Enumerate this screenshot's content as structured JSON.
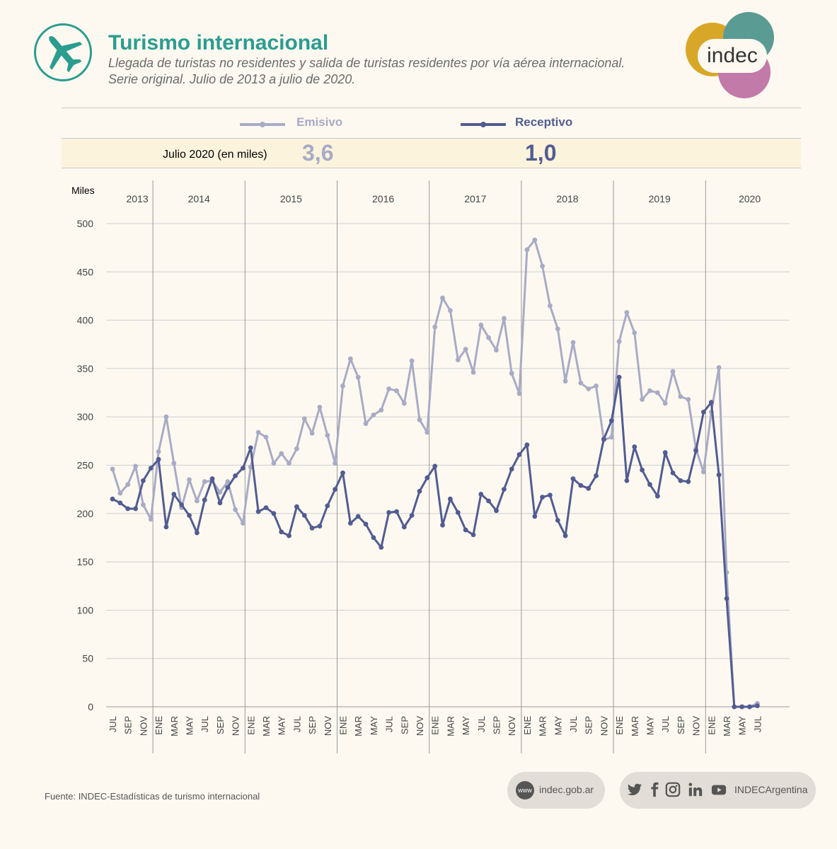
{
  "header": {
    "title": "Turismo internacional",
    "subtitle_line1": "Llegada de turistas no residentes y salida de turistas residentes por vía aérea internacional.",
    "subtitle_line2": "Serie original. Julio de 2013 a julio de 2020.",
    "logo_text": "indec"
  },
  "legend": {
    "emisivo_label": "Emisivo",
    "receptivo_label": "Receptivo"
  },
  "summary": {
    "label": "Julio 2020 (en miles)",
    "emisivo_value": "3,6",
    "receptivo_value": "1,0"
  },
  "footer": {
    "source": "Fuente: INDEC-Estadísticas de turismo internacional",
    "www_icon_text": "www",
    "website": "indec.gob.ar",
    "social_handle": "INDECArgentina",
    "social_icons": [
      "twitter-icon",
      "facebook-icon",
      "instagram-icon",
      "linkedin-icon",
      "youtube-icon"
    ]
  },
  "colors": {
    "emisivo": "#a8abc5",
    "receptivo": "#525c91",
    "title": "#2a9d8f",
    "logo_gold": "#d9a728",
    "logo_teal": "#5a9b93",
    "logo_pink": "#c27aa8"
  },
  "chart_data": {
    "type": "line",
    "ylabel": "Miles",
    "ylim": [
      0,
      500
    ],
    "yticks": [
      0,
      50,
      100,
      150,
      200,
      250,
      300,
      350,
      400,
      450,
      500
    ],
    "grid": true,
    "x_start": "2013-07",
    "x_end": "2020-07",
    "years": [
      "2013",
      "2014",
      "2015",
      "2016",
      "2017",
      "2018",
      "2019",
      "2020"
    ],
    "month_tick_labels": [
      "ENE",
      "MAR",
      "MAY",
      "JUL",
      "SEP",
      "NOV"
    ],
    "series": [
      {
        "name": "Emisivo",
        "values": [
          246,
          221,
          230,
          249,
          209,
          194,
          264,
          300,
          252,
          206,
          235,
          213,
          233,
          234,
          222,
          233,
          204,
          190,
          248,
          284,
          279,
          252,
          262,
          252,
          267,
          298,
          283,
          310,
          281,
          252,
          332,
          360,
          341,
          293,
          302,
          307,
          329,
          327,
          314,
          358,
          297,
          284,
          393,
          423,
          410,
          359,
          370,
          346,
          395,
          382,
          369,
          402,
          345,
          324,
          473,
          483,
          456,
          415,
          391,
          337,
          377,
          335,
          329,
          332,
          276,
          279,
          378,
          408,
          387,
          318,
          327,
          325,
          314,
          347,
          321,
          318,
          267,
          243,
          305,
          351,
          139,
          0,
          0,
          0,
          3.6
        ]
      },
      {
        "name": "Receptivo",
        "values": [
          215,
          211,
          205,
          205,
          234,
          247,
          256,
          186,
          220,
          209,
          198,
          180,
          214,
          236,
          211,
          227,
          239,
          247,
          268,
          202,
          206,
          200,
          181,
          177,
          207,
          198,
          185,
          187,
          208,
          225,
          242,
          190,
          197,
          189,
          175,
          165,
          201,
          202,
          186,
          198,
          223,
          237,
          249,
          188,
          215,
          201,
          183,
          178,
          220,
          213,
          203,
          225,
          246,
          261,
          271,
          197,
          217,
          219,
          193,
          177,
          236,
          229,
          226,
          239,
          277,
          296,
          341,
          234,
          269,
          245,
          230,
          218,
          263,
          242,
          234,
          233,
          265,
          305,
          315,
          240,
          112,
          0,
          0,
          0,
          1.0
        ]
      }
    ]
  }
}
